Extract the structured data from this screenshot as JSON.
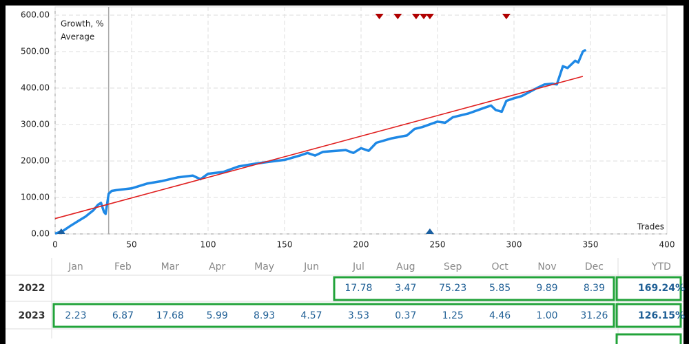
{
  "chart_data": {
    "type": "line",
    "x_label": "Trades",
    "xlim": [
      0,
      400
    ],
    "xticks": [
      0,
      50,
      100,
      150,
      200,
      250,
      300,
      350,
      400
    ],
    "ylim": [
      0,
      600
    ],
    "yticks": [
      {
        "value": 0,
        "label": "0.00"
      },
      {
        "value": 100,
        "label": "100.00"
      },
      {
        "value": 200,
        "label": "200.00"
      },
      {
        "value": 300,
        "label": "300.00"
      },
      {
        "value": 400,
        "label": "400.00"
      },
      {
        "value": 500,
        "label": "500.00"
      },
      {
        "value": 600,
        "label": "600.00"
      }
    ],
    "grid": true,
    "legend": "top-left",
    "marker_line_x": 35,
    "series": [
      {
        "name": "Growth, %",
        "color": "#1e88e5",
        "x": [
          0,
          5,
          10,
          15,
          20,
          25,
          28,
          30,
          32,
          33,
          35,
          37,
          40,
          50,
          60,
          70,
          80,
          90,
          95,
          100,
          110,
          120,
          130,
          140,
          150,
          160,
          165,
          170,
          175,
          190,
          195,
          200,
          205,
          210,
          220,
          230,
          235,
          240,
          250,
          255,
          260,
          270,
          280,
          285,
          288,
          292,
          295,
          300,
          305,
          315,
          320,
          325,
          328,
          332,
          335,
          340,
          342,
          345,
          347
        ],
        "values": [
          1,
          8,
          22,
          35,
          48,
          65,
          80,
          85,
          60,
          55,
          110,
          118,
          120,
          125,
          138,
          145,
          155,
          160,
          150,
          165,
          170,
          185,
          192,
          198,
          203,
          215,
          222,
          215,
          225,
          230,
          222,
          235,
          228,
          250,
          262,
          270,
          288,
          293,
          308,
          305,
          320,
          330,
          345,
          352,
          340,
          335,
          365,
          372,
          378,
          400,
          410,
          412,
          410,
          460,
          455,
          475,
          470,
          500,
          505
        ]
      },
      {
        "name": "Average",
        "color": "#e02020",
        "x": [
          0,
          345
        ],
        "values": [
          42,
          432
        ]
      }
    ],
    "markers": [
      {
        "shape": "down",
        "color": "#b00000",
        "x": [
          212,
          224,
          236,
          241,
          245,
          295
        ]
      },
      {
        "shape": "up",
        "color": "#1a5fa0",
        "x": [
          4,
          245
        ]
      }
    ]
  },
  "table": {
    "header": [
      "Jan",
      "Feb",
      "Mar",
      "Apr",
      "May",
      "Jun",
      "Jul",
      "Aug",
      "Sep",
      "Oct",
      "Nov",
      "Dec",
      "YTD"
    ],
    "rows": [
      [
        "2022",
        null,
        null,
        null,
        null,
        null,
        null,
        "17.78",
        "3.47",
        "75.23",
        "5.85",
        "9.89",
        "8.39",
        "169.24%"
      ],
      [
        "2023",
        "2.23",
        "6.87",
        "17.68",
        "5.99",
        "8.93",
        "4.57",
        "3.53",
        "0.37",
        "1.25",
        "4.46",
        "1.00",
        "31.26",
        "126.15%"
      ]
    ]
  }
}
